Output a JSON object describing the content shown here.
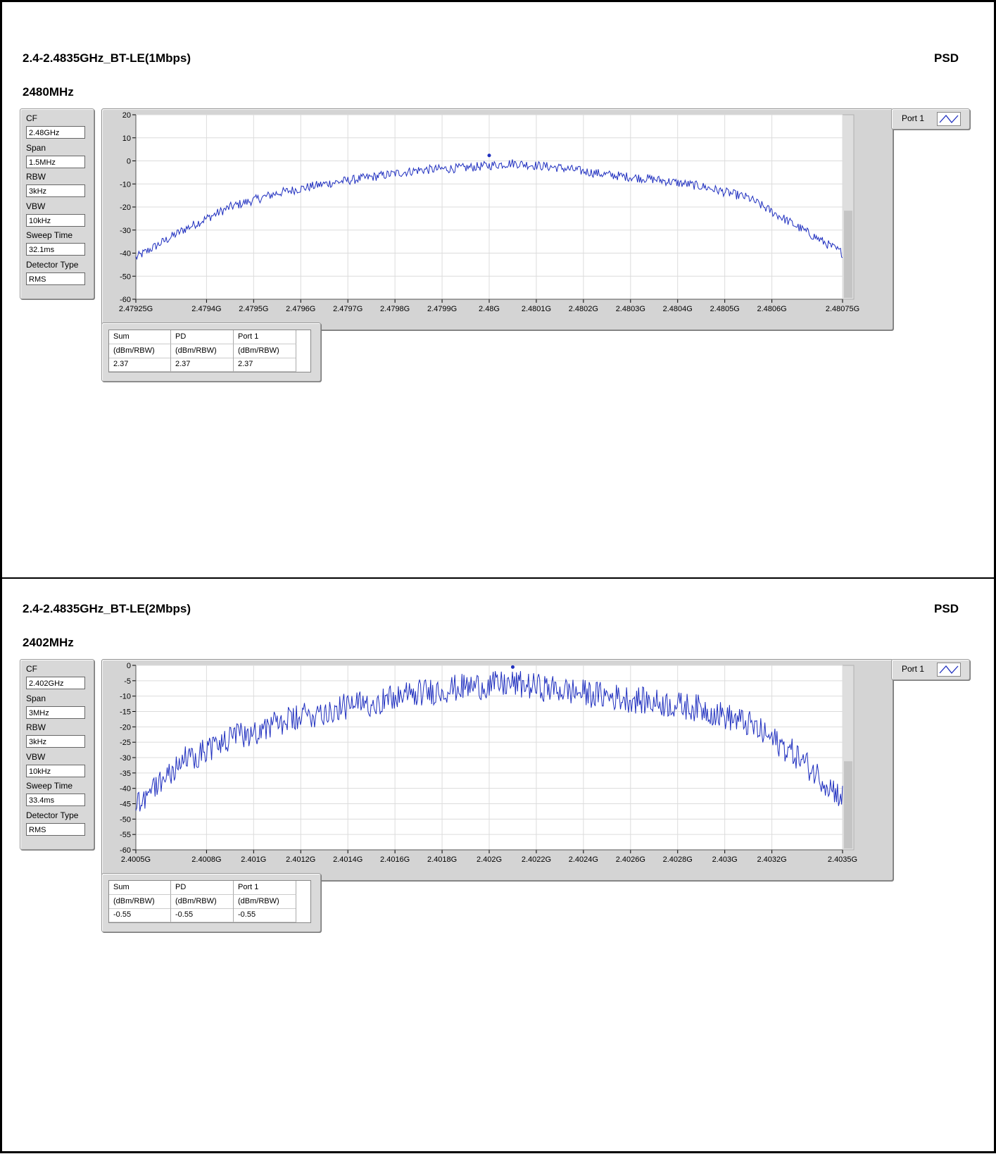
{
  "charts": [
    {
      "title": "2.4-2.4835GHz_BT-LE(1Mbps)",
      "measure": "PSD",
      "frequency": "2480MHz",
      "params": [
        {
          "label": "CF",
          "value": "2.48GHz"
        },
        {
          "label": "Span",
          "value": "1.5MHz"
        },
        {
          "label": "RBW",
          "value": "3kHz"
        },
        {
          "label": "VBW",
          "value": "10kHz"
        },
        {
          "label": "Sweep Time",
          "value": "32.1ms"
        },
        {
          "label": "Detector Type",
          "value": "RMS"
        }
      ],
      "legend": "Port 1",
      "results": {
        "headers": [
          "Sum",
          "PD",
          "Port 1"
        ],
        "units": [
          "(dBm/RBW)",
          "(dBm/RBW)",
          "(dBm/RBW)"
        ],
        "values": [
          "2.37",
          "2.37",
          "2.37"
        ]
      }
    },
    {
      "title": "2.4-2.4835GHz_BT-LE(2Mbps)",
      "measure": "PSD",
      "frequency": "2402MHz",
      "params": [
        {
          "label": "CF",
          "value": "2.402GHz"
        },
        {
          "label": "Span",
          "value": "3MHz"
        },
        {
          "label": "RBW",
          "value": "3kHz"
        },
        {
          "label": "VBW",
          "value": "10kHz"
        },
        {
          "label": "Sweep Time",
          "value": "33.4ms"
        },
        {
          "label": "Detector Type",
          "value": "RMS"
        }
      ],
      "legend": "Port 1",
      "results": {
        "headers": [
          "Sum",
          "PD",
          "Port 1"
        ],
        "units": [
          "(dBm/RBW)",
          "(dBm/RBW)",
          "(dBm/RBW)"
        ],
        "values": [
          "-0.55",
          "-0.55",
          "-0.55"
        ]
      }
    }
  ],
  "chart_data": [
    {
      "type": "line",
      "xlabel": "",
      "ylabel": "",
      "xlim": [
        2.47925,
        2.48075
      ],
      "ylim": [
        -60,
        20
      ],
      "grid": true,
      "line_color": "#1f2fbf",
      "yticks": [
        20,
        10,
        0,
        -10,
        -20,
        -30,
        -40,
        -50,
        -60
      ],
      "ytick_labels": [
        "20",
        "10",
        "0",
        "-10",
        "-20",
        "-30",
        "-40",
        "-50",
        "-60"
      ],
      "xticks": [
        2.47925,
        2.4794,
        2.4795,
        2.4796,
        2.4797,
        2.4798,
        2.4799,
        2.48,
        2.4801,
        2.4802,
        2.4803,
        2.4804,
        2.4805,
        2.4806,
        2.48075
      ],
      "xtick_labels": [
        "2.47925G",
        "2.4794G",
        "2.4795G",
        "2.4796G",
        "2.4797G",
        "2.4798G",
        "2.4799G",
        "2.48G",
        "2.4801G",
        "2.4802G",
        "2.4803G",
        "2.4804G",
        "2.4805G",
        "2.4806G",
        "2.48075G"
      ],
      "peak": {
        "x": 2.48,
        "y": 2.37
      },
      "series": [
        {
          "x": [
            2.47925,
            2.47935,
            2.47945,
            2.47955,
            2.47965,
            2.47975,
            2.47985,
            2.47995,
            2.48005,
            2.48015,
            2.48025,
            2.48035,
            2.48045,
            2.48055,
            2.48065,
            2.48075
          ],
          "values": [
            -42,
            -30,
            -20,
            -14,
            -10,
            -7,
            -4,
            -3,
            -1,
            -3,
            -6,
            -8,
            -11,
            -16,
            -28,
            -40
          ]
        }
      ]
    },
    {
      "type": "line",
      "xlabel": "",
      "ylabel": "",
      "xlim": [
        2.4005,
        2.4035
      ],
      "ylim": [
        -60,
        0
      ],
      "grid": true,
      "line_color": "#1f2fbf",
      "yticks": [
        0,
        -5,
        -10,
        -15,
        -20,
        -25,
        -30,
        -35,
        -40,
        -45,
        -50,
        -55,
        -60
      ],
      "ytick_labels": [
        "0",
        "-5",
        "-10",
        "-15",
        "-20",
        "-25",
        "-30",
        "-35",
        "-40",
        "-45",
        "-50",
        "-55",
        "-60"
      ],
      "xticks": [
        2.4005,
        2.4008,
        2.401,
        2.4012,
        2.4014,
        2.4016,
        2.4018,
        2.402,
        2.4022,
        2.4024,
        2.4026,
        2.4028,
        2.403,
        2.4032,
        2.4035
      ],
      "xtick_labels": [
        "2.4005G",
        "2.4008G",
        "2.401G",
        "2.4012G",
        "2.4014G",
        "2.4016G",
        "2.4018G",
        "2.402G",
        "2.4022G",
        "2.4024G",
        "2.4026G",
        "2.4028G",
        "2.403G",
        "2.4032G",
        "2.4035G"
      ],
      "peak": {
        "x": 2.4021,
        "y": -0.55
      },
      "series": [
        {
          "x": [
            2.4005,
            2.4007,
            2.4009,
            2.4011,
            2.4013,
            2.4015,
            2.4017,
            2.4019,
            2.4021,
            2.4023,
            2.4025,
            2.4027,
            2.4029,
            2.4031,
            2.4033,
            2.4035
          ],
          "values": [
            -45,
            -31,
            -24,
            -19,
            -15,
            -12,
            -9,
            -7,
            -6,
            -8,
            -10,
            -12,
            -14,
            -19,
            -29,
            -43
          ]
        }
      ]
    }
  ]
}
